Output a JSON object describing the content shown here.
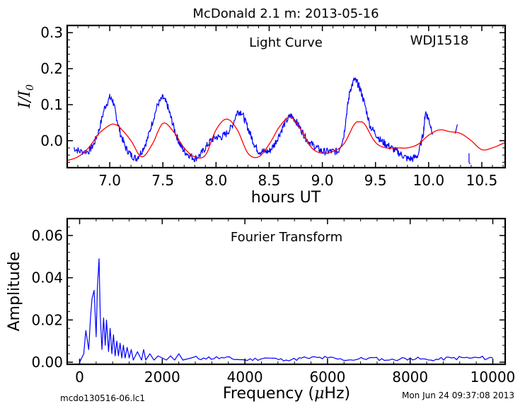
{
  "figure": {
    "title": "McDonald 2.1 m:  2013-05-16",
    "footer_left": "mcdo130516-06.lc1",
    "footer_right": "Mon Jun 24 09:37:08 2013"
  },
  "colors": {
    "data": "#0000ff",
    "model": "#ff0000",
    "axes": "#000000"
  },
  "chart_data": [
    {
      "type": "line",
      "panel": "top",
      "title": "Light Curve",
      "annotation": "WDJ1518",
      "xlabel": "hours UT",
      "ylabel": "I/I0",
      "xlim": [
        6.6,
        10.72
      ],
      "ylim": [
        -0.075,
        0.32
      ],
      "xticks": [
        7.0,
        7.5,
        8.0,
        8.5,
        9.0,
        9.5,
        10.0,
        10.5
      ],
      "xtick_labels": [
        "7.0",
        "7.5",
        "8.0",
        "8.5",
        "9.0",
        "9.5",
        "10.0",
        "10.5"
      ],
      "yticks": [
        0.0,
        0.1,
        0.2,
        0.3
      ],
      "ytick_labels": [
        "0.0",
        "0.1",
        "0.2",
        "0.3"
      ],
      "series": [
        {
          "color": "#0000ff",
          "style": "noisy-line",
          "x": [
            6.66,
            6.72,
            6.8,
            6.85,
            6.9,
            6.95,
            7.0,
            7.03,
            7.06,
            7.1,
            7.15,
            7.2,
            7.25,
            7.3,
            7.35,
            7.4,
            7.45,
            7.5,
            7.54,
            7.58,
            7.62,
            7.66,
            7.7,
            7.75,
            7.8,
            7.85,
            7.9,
            7.95,
            8.0,
            8.05,
            8.1,
            8.15,
            8.2,
            8.24,
            8.28,
            8.32,
            8.36,
            8.4,
            8.45,
            8.5,
            8.55,
            8.6,
            8.65,
            8.7,
            8.74,
            8.78,
            8.82,
            8.86,
            8.9,
            8.95,
            9.0,
            9.05,
            9.1,
            9.15,
            9.2,
            9.23,
            9.26,
            9.3,
            9.33,
            9.36,
            9.4,
            9.45,
            9.5,
            9.55,
            9.6,
            9.65,
            9.7,
            9.75,
            9.8,
            9.85,
            9.9,
            9.95,
            9.97,
            10.0,
            10.04
          ],
          "y": [
            -0.02,
            -0.03,
            -0.03,
            -0.01,
            0.03,
            0.09,
            0.12,
            0.11,
            0.07,
            0.02,
            -0.02,
            -0.04,
            -0.05,
            -0.03,
            0.0,
            0.05,
            0.1,
            0.12,
            0.1,
            0.06,
            0.02,
            -0.01,
            -0.03,
            -0.04,
            -0.05,
            -0.04,
            -0.02,
            0.0,
            0.01,
            0.01,
            0.02,
            0.04,
            0.08,
            0.08,
            0.05,
            0.02,
            -0.01,
            -0.03,
            -0.03,
            -0.03,
            -0.01,
            0.02,
            0.05,
            0.07,
            0.06,
            0.04,
            0.02,
            0.0,
            -0.01,
            -0.02,
            -0.03,
            -0.03,
            -0.03,
            -0.03,
            0.01,
            0.08,
            0.14,
            0.17,
            0.16,
            0.14,
            0.1,
            0.04,
            0.02,
            0.0,
            -0.01,
            -0.02,
            -0.03,
            -0.04,
            -0.05,
            -0.05,
            -0.04,
            0.02,
            0.08,
            0.06,
            0.02
          ]
        },
        {
          "color": "#0000ff",
          "style": "segment",
          "x": [
            10.25,
            10.27
          ],
          "y": [
            0.02,
            0.045
          ]
        },
        {
          "color": "#0000ff",
          "style": "segment",
          "x": [
            10.38,
            10.38,
            10.39
          ],
          "y": [
            -0.035,
            -0.06,
            -0.065
          ]
        },
        {
          "color": "#ff0000",
          "style": "smooth-line",
          "x": [
            6.6,
            6.7,
            6.8,
            6.9,
            7.0,
            7.05,
            7.1,
            7.2,
            7.3,
            7.4,
            7.5,
            7.6,
            7.7,
            7.8,
            7.9,
            8.0,
            8.1,
            8.2,
            8.3,
            8.4,
            8.5,
            8.6,
            8.7,
            8.8,
            8.9,
            9.0,
            9.1,
            9.2,
            9.3,
            9.35,
            9.4,
            9.5,
            9.6,
            9.7,
            9.8,
            9.9,
            10.0,
            10.1,
            10.2,
            10.3,
            10.4,
            10.5,
            10.6,
            10.72
          ],
          "y": [
            -0.055,
            -0.045,
            -0.02,
            0.02,
            0.043,
            0.045,
            0.035,
            0.0,
            -0.045,
            -0.01,
            0.048,
            0.025,
            -0.02,
            -0.045,
            -0.04,
            0.03,
            0.06,
            0.03,
            -0.035,
            -0.045,
            -0.01,
            0.04,
            0.065,
            0.03,
            -0.02,
            -0.035,
            -0.03,
            -0.01,
            0.045,
            0.052,
            0.045,
            -0.005,
            -0.02,
            -0.02,
            -0.02,
            -0.01,
            0.015,
            0.03,
            0.025,
            0.02,
            0.0,
            -0.025,
            -0.02,
            -0.005
          ]
        }
      ]
    },
    {
      "type": "line",
      "panel": "bottom",
      "title": "Fourier Transform",
      "xlabel": "Frequency (μHz)",
      "ylabel": "Amplitude",
      "xlim": [
        -300,
        10300
      ],
      "ylim": [
        -0.001,
        0.068
      ],
      "xticks": [
        0,
        2000,
        4000,
        6000,
        8000,
        10000
      ],
      "xtick_labels": [
        "0",
        "2000",
        "4000",
        "6000",
        "8000",
        "10000"
      ],
      "yticks": [
        0.0,
        0.02,
        0.04,
        0.06
      ],
      "ytick_labels": [
        "0.00",
        "0.02",
        "0.04",
        "0.06"
      ],
      "series": [
        {
          "color": "#0000ff",
          "style": "spectrum",
          "x": [
            0,
            100,
            150,
            220,
            260,
            300,
            350,
            400,
            430,
            470,
            500,
            540,
            580,
            620,
            650,
            700,
            740,
            780,
            820,
            860,
            900,
            940,
            980,
            1020,
            1060,
            1100,
            1150,
            1200,
            1250,
            1300,
            1400,
            1500,
            1550,
            1600,
            1700,
            1800,
            1900,
            2000,
            2100,
            2200,
            2300,
            2400,
            2500,
            2700,
            3000,
            3500,
            4000,
            4500,
            5000,
            5500,
            6000,
            6500,
            7000,
            7500,
            8000,
            8500,
            9000,
            9500,
            10000
          ],
          "y": [
            0.0,
            0.004,
            0.015,
            0.006,
            0.02,
            0.03,
            0.034,
            0.012,
            0.035,
            0.049,
            0.022,
            0.006,
            0.021,
            0.008,
            0.02,
            0.005,
            0.016,
            0.004,
            0.013,
            0.003,
            0.01,
            0.003,
            0.009,
            0.002,
            0.008,
            0.002,
            0.007,
            0.002,
            0.006,
            0.001,
            0.005,
            0.001,
            0.006,
            0.001,
            0.004,
            0.001,
            0.003,
            0.002,
            0.001,
            0.003,
            0.001,
            0.004,
            0.001,
            0.002,
            0.002,
            0.002,
            0.001,
            0.002,
            0.001,
            0.002,
            0.002,
            0.001,
            0.002,
            0.001,
            0.002,
            0.001,
            0.002,
            0.002,
            0.002
          ]
        }
      ]
    }
  ]
}
